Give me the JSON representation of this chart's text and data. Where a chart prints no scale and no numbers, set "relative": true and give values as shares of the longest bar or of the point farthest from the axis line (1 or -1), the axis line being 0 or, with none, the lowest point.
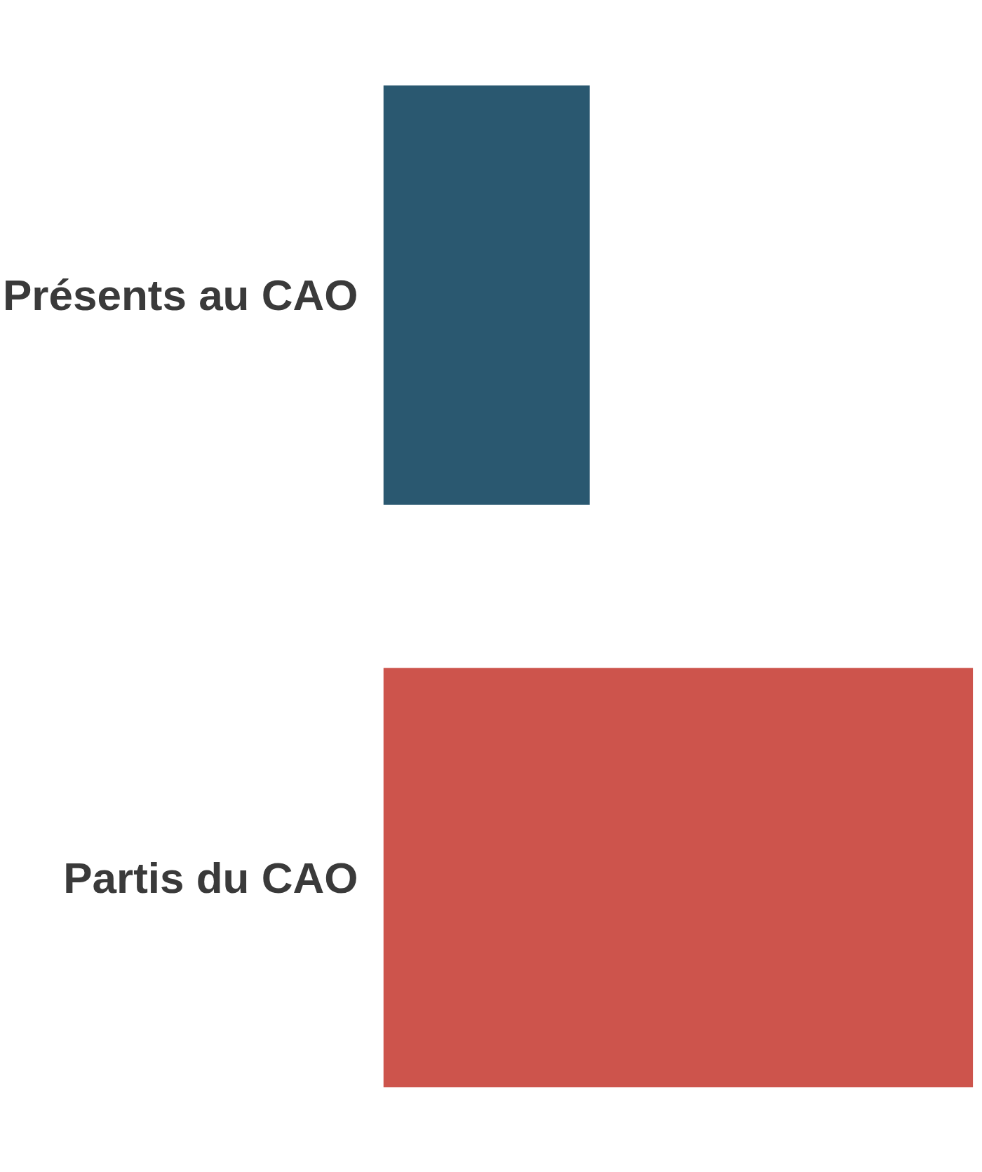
{
  "chart_data": {
    "type": "bar",
    "orientation": "horizontal",
    "relative": true,
    "categories": [
      "Présents au CAO",
      "Partis du CAO"
    ],
    "values": [
      0.35,
      1
    ],
    "colors": [
      "#2a5870",
      "#cd544c"
    ]
  }
}
